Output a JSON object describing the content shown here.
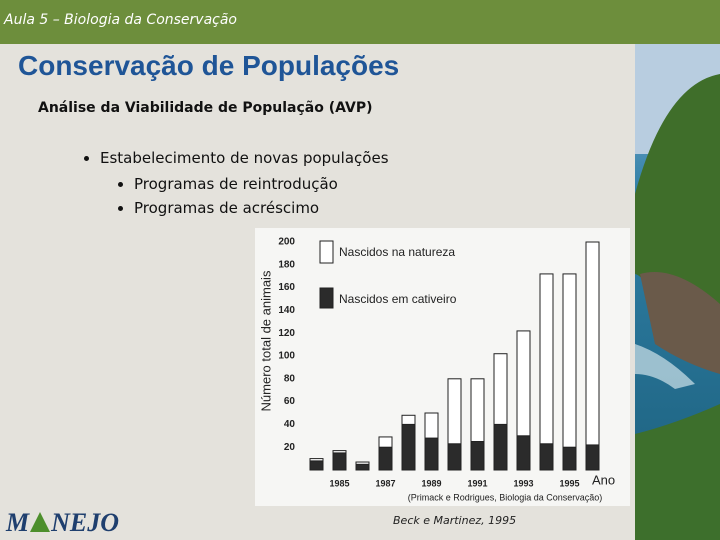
{
  "header": {
    "course": "Aula 5 – Biologia da Conservação"
  },
  "slide": {
    "title": "Conservação de Populações",
    "subtitle": "Análise da Viabilidade de População (AVP)",
    "bullet": "Estabelecimento de novas populações",
    "sub_bullets": [
      "Programas de reintrodução",
      "Programas de acréscimo"
    ],
    "caption": "Beck e Martinez, 1995",
    "logo": [
      "M",
      "NEJO"
    ]
  },
  "chart_data": {
    "type": "stacked-bar",
    "y_label": "Número total de animais",
    "x_label": "Ano",
    "source": "(Primack e Rodrigues, Biologia da Conservação)",
    "categories": [
      null,
      "1985",
      null,
      "1987",
      null,
      "1989",
      null,
      "1991",
      null,
      "1993",
      null,
      "1995",
      null
    ],
    "series": [
      {
        "name": "Nascidos na natureza",
        "color": "#ffffff",
        "values": [
          2,
          2,
          2,
          9,
          8,
          22,
          57,
          55,
          62,
          92,
          149,
          152,
          178
        ]
      },
      {
        "name": "Nascidos em cativeiro",
        "color": "#2b2b2b",
        "values": [
          8,
          15,
          5,
          20,
          40,
          28,
          23,
          25,
          40,
          30,
          23,
          20,
          22
        ]
      }
    ],
    "ylim": [
      0,
      200
    ],
    "yticks": [
      20,
      40,
      60,
      80,
      100,
      120,
      140,
      160,
      180,
      200
    ],
    "grid": false
  }
}
